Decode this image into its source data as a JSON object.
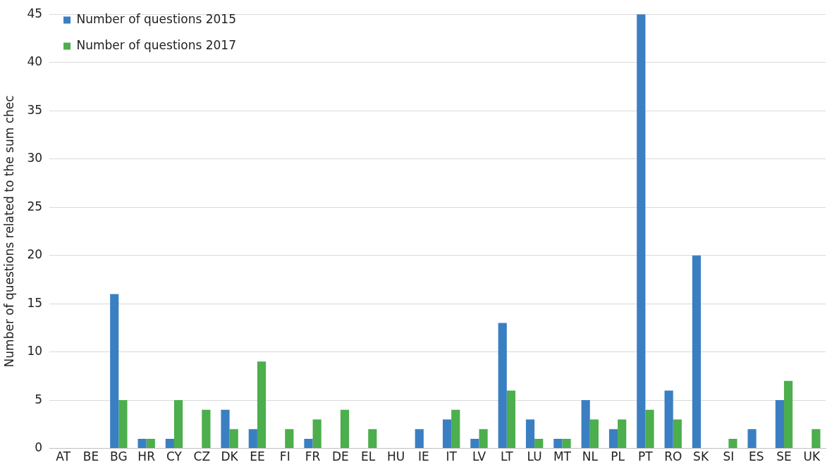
{
  "chart_data": {
    "type": "bar",
    "ylabel": "Number of questions related to the sum chec",
    "categories": [
      "AT",
      "BE",
      "BG",
      "HR",
      "CY",
      "CZ",
      "DK",
      "EE",
      "FI",
      "FR",
      "DE",
      "EL",
      "HU",
      "IE",
      "IT",
      "LV",
      "LT",
      "LU",
      "MT",
      "NL",
      "PL",
      "PT",
      "RO",
      "SK",
      "SI",
      "ES",
      "SE",
      "UK"
    ],
    "series": [
      {
        "name": "Number of questions 2015",
        "color": "#3a7fc1",
        "values": [
          0,
          0,
          16,
          1,
          1,
          0,
          4,
          2,
          0,
          1,
          0,
          0,
          0,
          2,
          3,
          1,
          13,
          3,
          1,
          5,
          2,
          45,
          6,
          20,
          0,
          2,
          5,
          0
        ]
      },
      {
        "name": "Number of questions 2017",
        "color": "#4cae4c",
        "values": [
          0,
          0,
          5,
          1,
          5,
          4,
          2,
          9,
          2,
          3,
          4,
          2,
          0,
          0,
          4,
          2,
          6,
          1,
          1,
          3,
          3,
          4,
          3,
          0,
          1,
          0,
          7,
          2
        ]
      }
    ],
    "ylim": [
      0,
      45
    ],
    "yticks": [
      0,
      5,
      10,
      15,
      20,
      25,
      30,
      35,
      40,
      45
    ],
    "grid": "y",
    "legend": "top left"
  }
}
